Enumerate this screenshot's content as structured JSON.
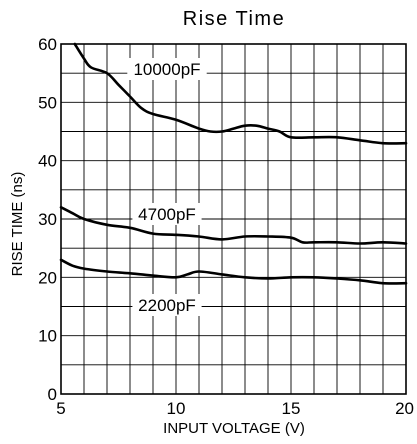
{
  "chart_data": {
    "type": "line",
    "title": "Rise Time",
    "xlabel": "INPUT VOLTAGE (V)",
    "ylabel": "RISE TIME (ns)",
    "xlim": [
      5,
      20
    ],
    "ylim": [
      0,
      60
    ],
    "x_ticks": [
      5,
      10,
      15,
      20
    ],
    "y_ticks": [
      0,
      10,
      20,
      30,
      40,
      50,
      60
    ],
    "grid": true,
    "series": [
      {
        "name": "10000pF",
        "x": [
          5.6,
          6,
          6.3,
          7,
          7.5,
          8,
          8.5,
          9,
          10,
          11,
          11.5,
          12,
          12.5,
          13,
          13.5,
          14,
          14.5,
          15,
          16,
          17,
          18,
          19,
          20
        ],
        "y": [
          60,
          57.5,
          56,
          55,
          53,
          51,
          49,
          48,
          47,
          45.5,
          45,
          45,
          45.5,
          46,
          46,
          45.5,
          45,
          44,
          44,
          44,
          43.5,
          43,
          43
        ]
      },
      {
        "name": "4700pF",
        "x": [
          5,
          5.5,
          6,
          7,
          8,
          9,
          10,
          11,
          12,
          13,
          14,
          15,
          15.5,
          16,
          17,
          18,
          19,
          20
        ],
        "y": [
          32,
          31,
          30,
          29,
          28.5,
          27.5,
          27.3,
          27,
          26.5,
          27,
          27,
          26.8,
          26,
          26,
          26,
          25.8,
          26,
          25.8
        ]
      },
      {
        "name": "2200pF",
        "x": [
          5,
          5.5,
          6,
          7,
          8,
          9,
          10,
          10.5,
          11,
          12,
          13,
          14,
          15,
          16,
          17,
          18,
          19,
          20
        ],
        "y": [
          23,
          22,
          21.5,
          21,
          20.7,
          20.3,
          20,
          20.5,
          21,
          20.5,
          20,
          19.8,
          20,
          20,
          19.8,
          19.5,
          19,
          19
        ]
      }
    ]
  }
}
